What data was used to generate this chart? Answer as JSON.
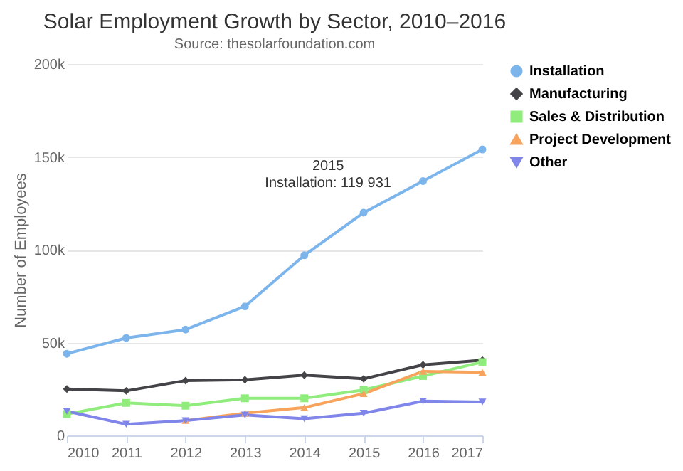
{
  "chart_data": {
    "type": "line",
    "title": "Solar Employment Growth by Sector, 2010–2016",
    "subtitle": "Source: thesolarfoundation.com",
    "ylabel": "Number of Employees",
    "x": [
      2010,
      2011,
      2012,
      2013,
      2014,
      2015,
      2016,
      2017
    ],
    "xlim": [
      2010,
      2017
    ],
    "xticks": [
      2010,
      2011,
      2012,
      2013,
      2014,
      2015,
      2016,
      2017
    ],
    "ylim": [
      0,
      200000
    ],
    "yticks": [
      {
        "value": 0,
        "label": "0"
      },
      {
        "value": 50000,
        "label": "50k"
      },
      {
        "value": 100000,
        "label": "100k"
      },
      {
        "value": 150000,
        "label": "150k"
      },
      {
        "value": 200000,
        "label": "200k"
      }
    ],
    "grid": "y",
    "legend": "right",
    "line_style": "solid",
    "series": [
      {
        "name": "Installation",
        "color": "#7cb5ec",
        "marker": "circle",
        "values": [
          44000,
          52500,
          57000,
          69500,
          97000,
          119931,
          137000,
          154000
        ]
      },
      {
        "name": "Manufacturing",
        "color": "#434348",
        "marker": "diamond",
        "values": [
          25000,
          24000,
          29500,
          30000,
          32500,
          30500,
          38000,
          40500
        ]
      },
      {
        "name": "Sales & Distribution",
        "color": "#90ed7d",
        "marker": "square",
        "values": [
          11500,
          17500,
          16000,
          20000,
          20000,
          24500,
          32000,
          39500
        ]
      },
      {
        "name": "Project Development",
        "color": "#f7a35c",
        "marker": "triangle",
        "values": [
          null,
          null,
          8000,
          12000,
          15000,
          22500,
          34500,
          34000
        ]
      },
      {
        "name": "Other",
        "color": "#8085e9",
        "marker": "triangle-down",
        "values": [
          13000,
          6000,
          8000,
          11000,
          9000,
          12000,
          18500,
          18000
        ]
      }
    ],
    "annotations": [
      {
        "text": "2015\nInstallation: 119 931",
        "x": 2015,
        "y": 119931
      }
    ]
  }
}
